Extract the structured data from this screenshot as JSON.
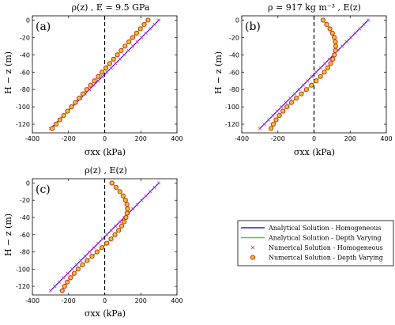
{
  "colors": {
    "analytical_homogeneous": "#1f1fd6",
    "analytical_depth_varying": "#33dd33",
    "numerical_homogeneous": "#cc22cc",
    "numerical_depth_varying": "#dd2222",
    "marker_fill_depth_varying": "#d9cf2a",
    "zero_line": "#000000"
  },
  "legend": {
    "items": [
      {
        "label": "Analytical Solution - Homogeneous",
        "kind": "line",
        "color": "#1f1fd6"
      },
      {
        "label": "Analytical Solution - Depth Varying",
        "kind": "line",
        "color": "#33dd33"
      },
      {
        "label": "Numerical Solution - Homogeneous",
        "kind": "cross",
        "color": "#cc22cc"
      },
      {
        "label": "Numerical Solution - Depth Varying",
        "kind": "circle",
        "color": "#dd2222"
      }
    ]
  },
  "chart_data": [
    {
      "type": "line",
      "panel_label": "(a)",
      "title": "ρ(z) , E = 9.5 GPa",
      "xlabel": "σxx (kPa)",
      "ylabel": "H − z (m)",
      "xlim": [
        -400,
        400
      ],
      "ylim": [
        -130,
        5
      ],
      "xticks": [
        "-400",
        "-200",
        "0",
        "200",
        "400"
      ],
      "yticks": [
        "0",
        "-20",
        "-40",
        "-60",
        "-80",
        "-100",
        "-120"
      ],
      "depth_values": [
        0,
        -5,
        -10,
        -15,
        -20,
        -25,
        -30,
        -35,
        -40,
        -45,
        -50,
        -55,
        -60,
        -65,
        -70,
        -75,
        -80,
        -85,
        -90,
        -95,
        -100,
        -105,
        -110,
        -115,
        -120,
        -125
      ],
      "series": [
        {
          "name": "Analytical Solution - Homogeneous",
          "x_range": [
            300,
            -300
          ]
        },
        {
          "name": "Analytical Solution - Depth Varying",
          "x_range": [
            240,
            -290
          ]
        },
        {
          "name": "Numerical Solution - Homogeneous",
          "x_range": [
            300,
            -300
          ]
        },
        {
          "name": "Numerical Solution - Depth Varying",
          "x_range": [
            240,
            -290
          ]
        }
      ]
    },
    {
      "type": "line",
      "panel_label": "(b)",
      "title": "ρ = 917 kg m⁻³ , E(z)",
      "xlabel": "σxx (kPa)",
      "ylabel": "H − z (m)",
      "xlim": [
        -400,
        400
      ],
      "ylim": [
        -130,
        5
      ],
      "xticks": [
        "-400",
        "-200",
        "0",
        "200",
        "400"
      ],
      "yticks": [
        "0",
        "-20",
        "-40",
        "-60",
        "-80",
        "-100",
        "-120"
      ],
      "depth_values": [
        0,
        -5,
        -10,
        -15,
        -20,
        -25,
        -30,
        -35,
        -40,
        -45,
        -50,
        -55,
        -60,
        -65,
        -70,
        -75,
        -80,
        -85,
        -90,
        -95,
        -100,
        -105,
        -110,
        -115,
        -120,
        -125
      ],
      "series": [
        {
          "name": "Analytical Solution - Homogeneous",
          "x_range": [
            300,
            -300
          ]
        },
        {
          "name": "Analytical Solution - Depth Varying",
          "x_values": [
            50,
            70,
            88,
            102,
            112,
            118,
            120,
            118,
            113,
            104,
            92,
            76,
            57,
            36,
            12,
            -14,
            -42,
            -70,
            -98,
            -125,
            -150,
            -172,
            -192,
            -210,
            -225,
            -238
          ]
        },
        {
          "name": "Numerical Solution - Homogeneous",
          "x_range": [
            300,
            -300
          ]
        },
        {
          "name": "Numerical Solution - Depth Varying",
          "x_values": [
            50,
            70,
            88,
            102,
            112,
            118,
            120,
            118,
            113,
            104,
            92,
            76,
            57,
            36,
            12,
            -14,
            -42,
            -70,
            -98,
            -125,
            -150,
            -172,
            -192,
            -210,
            -225,
            -238
          ]
        }
      ]
    },
    {
      "type": "line",
      "panel_label": "(c)",
      "title": "ρ(z) , E(z)",
      "xlabel": "σxx (kPa)",
      "ylabel": "H − z (m)",
      "xlim": [
        -400,
        400
      ],
      "ylim": [
        -130,
        5
      ],
      "xticks": [
        "-400",
        "-200",
        "0",
        "200",
        "400"
      ],
      "yticks": [
        "0",
        "-20",
        "-40",
        "-60",
        "-80",
        "-100",
        "-120"
      ],
      "depth_values": [
        0,
        -5,
        -10,
        -15,
        -20,
        -25,
        -30,
        -35,
        -40,
        -45,
        -50,
        -55,
        -60,
        -65,
        -70,
        -75,
        -80,
        -85,
        -90,
        -95,
        -100,
        -105,
        -110,
        -115,
        -120,
        -125
      ],
      "series": [
        {
          "name": "Analytical Solution - Homogeneous",
          "x_range": [
            300,
            -300
          ]
        },
        {
          "name": "Analytical Solution - Depth Varying",
          "x_values": [
            40,
            63,
            84,
            102,
            115,
            123,
            126,
            124,
            118,
            108,
            94,
            77,
            57,
            35,
            11,
            -15,
            -42,
            -70,
            -97,
            -123,
            -147,
            -169,
            -189,
            -207,
            -222,
            -235
          ]
        },
        {
          "name": "Numerical Solution - Homogeneous",
          "x_range": [
            300,
            -300
          ]
        },
        {
          "name": "Numerical Solution - Depth Varying",
          "x_values": [
            40,
            63,
            84,
            102,
            115,
            123,
            126,
            124,
            118,
            108,
            94,
            77,
            57,
            35,
            11,
            -15,
            -42,
            -70,
            -97,
            -123,
            -147,
            -169,
            -189,
            -207,
            -222,
            -235
          ]
        }
      ]
    }
  ]
}
